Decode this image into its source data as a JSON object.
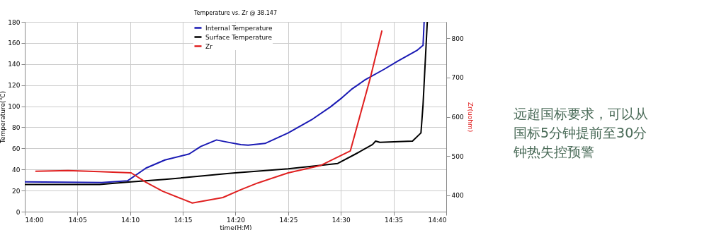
{
  "chart_data": {
    "type": "line",
    "title": "Temperature vs. Zr @ 38.147",
    "xlabel": "time(H:M)",
    "ylabel": "Temperature(℃)",
    "y2label": "Zr(uohm)",
    "xlim": [
      14.0,
      14.6667
    ],
    "xticks": [
      {
        "value": 14.0,
        "label": "14:00"
      },
      {
        "value": 14.0833,
        "label": "14:05"
      },
      {
        "value": 14.1667,
        "label": "14:10"
      },
      {
        "value": 14.25,
        "label": "14:15"
      },
      {
        "value": 14.3333,
        "label": "14:20"
      },
      {
        "value": 14.4167,
        "label": "14:25"
      },
      {
        "value": 14.5,
        "label": "14:30"
      },
      {
        "value": 14.5833,
        "label": "14:35"
      },
      {
        "value": 14.6667,
        "label": "14:40"
      }
    ],
    "ylim": [
      0,
      180
    ],
    "yticks": [
      0,
      20,
      40,
      60,
      80,
      100,
      120,
      140,
      160,
      180
    ],
    "y2lim": [
      358,
      842
    ],
    "y2ticks": [
      400,
      500,
      600,
      700,
      800
    ],
    "grid": true,
    "legend": "top",
    "line_style": "solid",
    "marker": "none",
    "series": [
      {
        "name": "Internal Temperature",
        "color": "#1a1ab4",
        "x": [
          14.0,
          14.1217,
          14.1625,
          14.1917,
          14.2217,
          14.26,
          14.2783,
          14.3033,
          14.32,
          14.3417,
          14.3533,
          14.38,
          14.4167,
          14.4533,
          14.4833,
          14.5017,
          14.5167,
          14.5383,
          14.5683,
          14.59,
          14.62,
          14.63,
          14.6317
        ],
        "values": [
          28.3,
          27.6,
          29.2,
          41.3,
          49,
          54.7,
          61.8,
          68,
          66,
          63.6,
          63.1,
          64.7,
          74.7,
          87,
          99.3,
          108,
          116,
          125,
          135,
          142.8,
          152.8,
          157.7,
          180
        ]
      },
      {
        "name": "Surface Temperature",
        "color": "#000000",
        "x": [
          14.0,
          14.1183,
          14.1683,
          14.2217,
          14.2817,
          14.32,
          14.3333,
          14.4167,
          14.495,
          14.5233,
          14.55,
          14.555,
          14.5617,
          14.6133,
          14.6267,
          14.63,
          14.6367
        ],
        "values": [
          25.7,
          25.7,
          28.3,
          30.6,
          33.9,
          36.1,
          36.8,
          40.6,
          45.7,
          54.7,
          63.6,
          66.9,
          65.7,
          66.9,
          74.7,
          101.5,
          180
        ]
      },
      {
        "name": "Zr",
        "color": "#e02020",
        "axis": "y2",
        "x": [
          14.0167,
          14.0683,
          14.1177,
          14.1683,
          14.1917,
          14.2183,
          14.265,
          14.3133,
          14.3417,
          14.3683,
          14.4167,
          14.4683,
          14.515,
          14.5467,
          14.565
        ],
        "values": [
          461,
          463,
          460,
          457,
          433,
          410,
          380,
          394,
          414,
          431,
          457,
          476,
          513,
          700,
          820
        ]
      }
    ],
    "annotations": [
      "远超国标要求，可以从国标5分钟提前至30分钟热失控预警"
    ]
  }
}
